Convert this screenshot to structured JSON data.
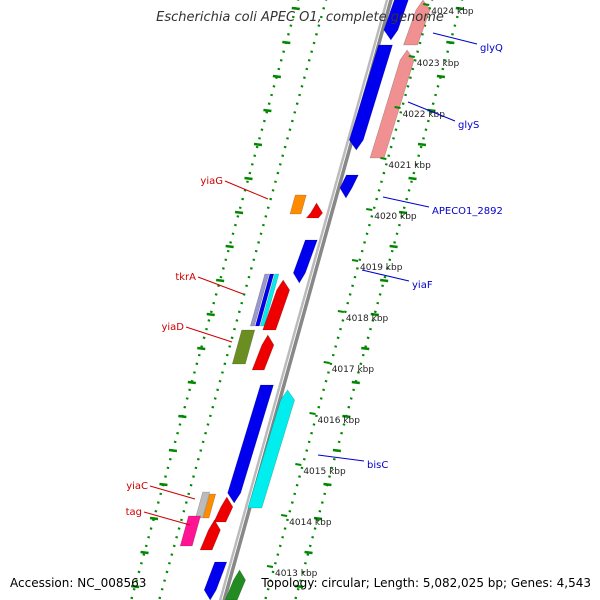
{
  "title": "Escherichia coli APEC O1, complete genome",
  "footer": {
    "accession": "Accession: NC_008563",
    "summary": "Topology: circular; Length: 5,082,025 bp; Genes: 4,543"
  },
  "ticks": [
    "4024 kbp",
    "4023 kbp",
    "4022 kbp",
    "4021 kbp",
    "4020 kbp",
    "4019 kbp",
    "4018 kbp",
    "4017 kbp",
    "4016 kbp",
    "4015 kbp",
    "4014 kbp",
    "4013 kbp"
  ],
  "genes_right": [
    "glyQ",
    "glyS",
    "APECO1_2892",
    "yiaF",
    "bisC"
  ],
  "genes_left": [
    "yiaG",
    "tkrA",
    "yiaD",
    "yiaC",
    "tag"
  ],
  "colors": {
    "forward_cds": "#0000ee",
    "reverse_cds": "#ee0000",
    "rrna_like": "#00eeee",
    "light_red": "#f09090",
    "orange": "#ff8c00",
    "olive": "#6b8e23",
    "magenta": "#ff1493",
    "label_right": "#0000cc",
    "label_left": "#cc0000",
    "backbone": "#888888",
    "tick_green": "#008800"
  }
}
